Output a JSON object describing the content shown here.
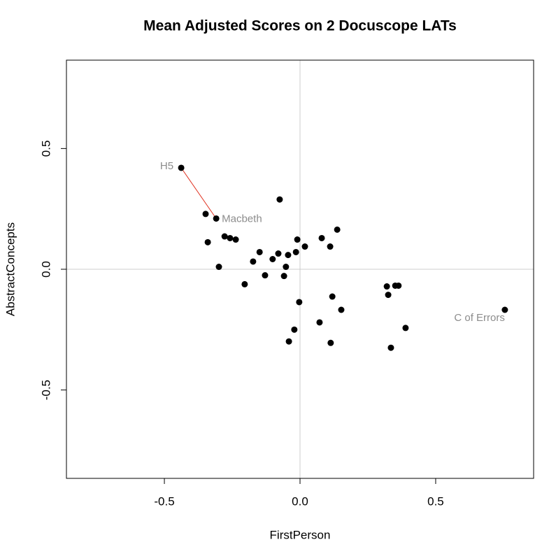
{
  "chart_data": {
    "type": "scatter",
    "title": "Mean Adjusted Scores on 2 Docuscope LATs",
    "x_label": "FirstPerson",
    "y_label": "AbstractConcepts",
    "x": [
      -0.438,
      -0.309,
      -0.348,
      -0.34,
      -0.299,
      -0.278,
      -0.258,
      -0.237,
      -0.204,
      -0.173,
      -0.149,
      -0.129,
      -0.101,
      -0.08,
      -0.075,
      -0.059,
      -0.052,
      -0.044,
      -0.041,
      -0.021,
      -0.015,
      -0.01,
      -0.003,
      0.018,
      0.072,
      0.08,
      0.111,
      0.113,
      0.119,
      0.137,
      0.152,
      0.32,
      0.325,
      0.335,
      0.351,
      0.363,
      0.389,
      0.755
    ],
    "values": [
      0.42,
      0.21,
      0.229,
      0.112,
      0.01,
      0.136,
      0.129,
      0.123,
      -0.062,
      0.032,
      0.071,
      -0.025,
      0.042,
      0.065,
      0.289,
      -0.028,
      0.01,
      0.059,
      -0.299,
      -0.25,
      0.071,
      0.123,
      -0.136,
      0.094,
      -0.22,
      0.129,
      0.094,
      -0.305,
      -0.113,
      0.164,
      -0.168,
      -0.071,
      -0.106,
      -0.325,
      -0.068,
      -0.068,
      -0.243,
      -0.168
    ],
    "color": "#000000",
    "xlim": [
      -0.861,
      0.861
    ],
    "ylim": [
      -0.866,
      0.866
    ],
    "xticks": [
      -0.5,
      {
        "value": 0,
        "label": "0.0"
      },
      0.5
    ],
    "yticks": [
      -0.5,
      {
        "value": 0,
        "label": "0.0"
      },
      0.5
    ],
    "reference_lines": {
      "x": 0,
      "y": 0,
      "color": "#cccccc"
    },
    "point_labels": [
      {
        "text": "H5",
        "index": 0,
        "position": "left"
      },
      {
        "text": "Macbeth",
        "index": 1,
        "position": "right"
      },
      {
        "text": "C of Errors",
        "index": 37,
        "position": "below-left"
      }
    ],
    "point_label_color": "#8c8c8c",
    "segment": {
      "from": 0,
      "to": 1,
      "color": "#e0301e"
    }
  }
}
